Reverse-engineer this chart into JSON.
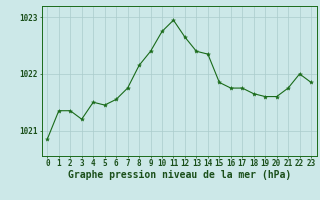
{
  "x": [
    0,
    1,
    2,
    3,
    4,
    5,
    6,
    7,
    8,
    9,
    10,
    11,
    12,
    13,
    14,
    15,
    16,
    17,
    18,
    19,
    20,
    21,
    22,
    23
  ],
  "y": [
    1020.85,
    1021.35,
    1021.35,
    1021.2,
    1021.5,
    1021.45,
    1021.55,
    1021.75,
    1022.15,
    1022.4,
    1022.75,
    1022.95,
    1022.65,
    1022.4,
    1022.35,
    1021.85,
    1021.75,
    1021.75,
    1021.65,
    1021.6,
    1021.6,
    1021.75,
    1022.0,
    1021.85
  ],
  "line_color": "#1a6b1a",
  "marker": "*",
  "marker_color": "#1a6b1a",
  "marker_size": 3,
  "background_color": "#cce8e8",
  "grid_color": "#aacccc",
  "ylabel_ticks": [
    1021,
    1022,
    1023
  ],
  "xlim": [
    -0.5,
    23.5
  ],
  "ylim": [
    1020.55,
    1023.2
  ],
  "xtick_labels": [
    "0",
    "1",
    "2",
    "3",
    "4",
    "5",
    "6",
    "7",
    "8",
    "9",
    "10",
    "11",
    "12",
    "13",
    "14",
    "15",
    "16",
    "17",
    "18",
    "19",
    "20",
    "21",
    "22",
    "23"
  ],
  "spine_color": "#1a6b1a",
  "text_color": "#1a4f1a",
  "title": "Graphe pression niveau de la mer (hPa)",
  "title_fontsize": 7.5,
  "tick_fontsize": 5.5,
  "xlabel_fontsize": 7.0
}
